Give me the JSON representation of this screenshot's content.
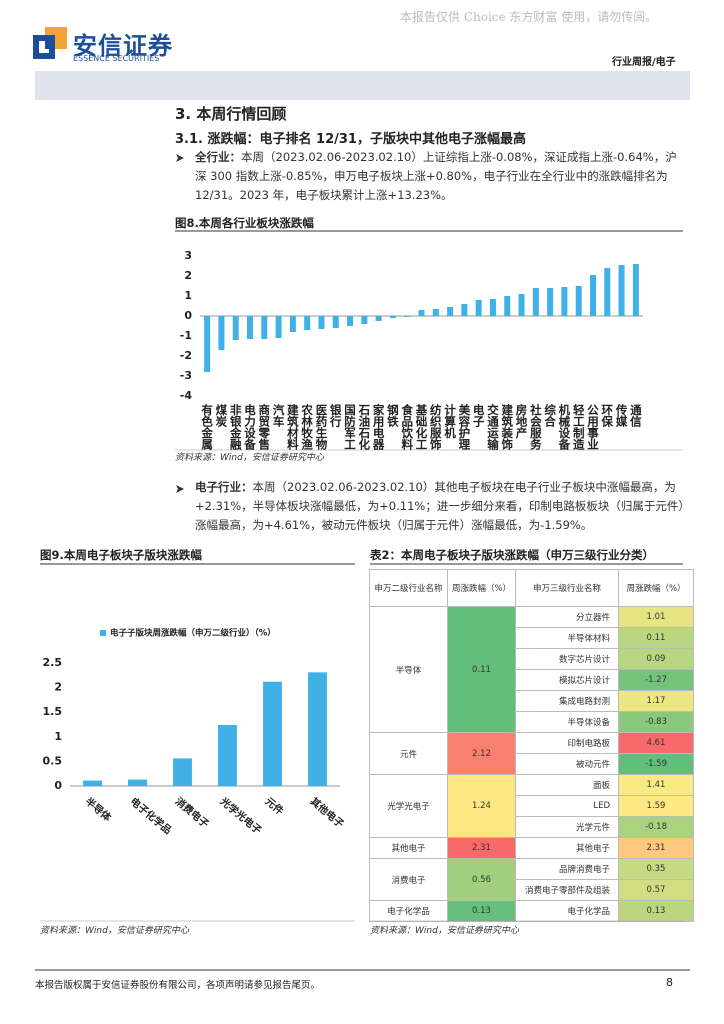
{
  "header": {
    "watermark": "本报告仅供 Choice 东方财富 使用，请勿传阅。",
    "logo_cn": "安信证券",
    "logo_en": "ESSENCE SECURITIES",
    "section": "行业周报/电子"
  },
  "heading": "3. 本周行情回顾",
  "subheading": "3.1. 涨跌幅：电子排名 12/31，子版块中其他电子涨幅最高",
  "bullets": [
    {
      "label": "全行业：",
      "text": "本周（2023.02.06-2023.02.10）上证综指上涨-0.08%，深证成指上涨-0.64%，沪深 300 指数上涨-0.85%，申万电子板块上涨+0.80%，电子行业在全行业中的涨跌幅排名为 12/31。2023 年，电子板块累计上涨+13.23%。"
    },
    {
      "label": "电子行业：",
      "text": "本周（2023.02.06-2023.02.10）其他电子板块在电子行业子板块中涨幅最高，为+2.31%，半导体板块涨幅最低，为+0.11%；进一步细分来看，印制电路板板块（归属于元件）涨幅最高，为+4.61%，被动元件板块（归属于元件）涨幅最低，为-1.59%。"
    }
  ],
  "chart_data": [
    {
      "type": "bar",
      "title": "图8.本周各行业板块涨跌幅",
      "source": "资料来源：Wind，安信证券研究中心",
      "color": "#3fb1e6",
      "categories": [
        "有色金属",
        "煤炭",
        "非银金融",
        "电力设备",
        "商贸零售",
        "汽车",
        "建筑材料",
        "农林牧渔",
        "医药生物",
        "银行",
        "国防军工",
        "石油石化",
        "家用电器",
        "钢铁",
        "食品饮料",
        "基础化工",
        "纺织服饰",
        "计算机",
        "美容护理",
        "电子",
        "交通运输",
        "建筑装饰",
        "房地产",
        "社会服务",
        "综合",
        "机械设备",
        "轻工制造",
        "公用事业",
        "环保",
        "传媒",
        "通信"
      ],
      "values": [
        -2.8,
        -1.7,
        -1.2,
        -1.15,
        -1.15,
        -1.1,
        -0.8,
        -0.7,
        -0.65,
        -0.6,
        -0.5,
        -0.4,
        -0.25,
        -0.1,
        -0.05,
        0.3,
        0.35,
        0.45,
        0.6,
        0.8,
        0.85,
        1.0,
        1.1,
        1.4,
        1.4,
        1.45,
        1.5,
        2.05,
        2.4,
        2.55,
        2.6
      ],
      "ylim": [
        -4,
        3
      ],
      "yticks": [
        -4,
        -3,
        -2,
        -1,
        0,
        1,
        2,
        3
      ]
    },
    {
      "type": "bar",
      "title": "图9.本周电子板块子版块涨跌幅",
      "source": "资料来源：Wind，安信证券研究中心",
      "color": "#3fb1e6",
      "series": [
        {
          "name": "电子子版块周涨跌幅（申万二级行业）（%）",
          "color": "#3fb1e6",
          "values": [
            0.11,
            0.13,
            0.56,
            1.24,
            2.12,
            2.31
          ]
        }
      ],
      "categories": [
        "半导体",
        "电子化学品",
        "消费电子",
        "光学光电子",
        "元件",
        "其他电子"
      ],
      "ylim": [
        0,
        2.5
      ],
      "yticks": [
        0,
        0.5,
        1,
        1.5,
        2,
        2.5
      ]
    }
  ],
  "table": {
    "title": "表2：本周电子板块子版块涨跌幅（申万三级行业分类）",
    "source": "资料来源：Wind，安信证券研究中心",
    "headers": [
      "申万二级行业名称",
      "周涨跌幅（%）",
      "申万三级行业名称",
      "周涨跌幅（%）"
    ],
    "groups": [
      {
        "name": "半导体",
        "value": 0.11,
        "subs": [
          {
            "name": "分立器件",
            "value": 1.01
          },
          {
            "name": "半导体材料",
            "value": 0.11
          },
          {
            "name": "数字芯片设计",
            "value": 0.09
          },
          {
            "name": "模拟芯片设计",
            "value": -1.27
          },
          {
            "name": "集成电路封测",
            "value": 1.17
          },
          {
            "name": "半导体设备",
            "value": -0.83
          }
        ]
      },
      {
        "name": "元件",
        "value": 2.12,
        "subs": [
          {
            "name": "印制电路板",
            "value": 4.61
          },
          {
            "name": "被动元件",
            "value": -1.59
          }
        ]
      },
      {
        "name": "光学光电子",
        "value": 1.24,
        "subs": [
          {
            "name": "面板",
            "value": 1.41
          },
          {
            "name": "LED",
            "value": 1.59
          },
          {
            "name": "光学元件",
            "value": -0.18
          }
        ]
      },
      {
        "name": "其他电子",
        "value": 2.31,
        "subs": [
          {
            "name": "其他电子",
            "value": 2.31
          }
        ]
      },
      {
        "name": "消费电子",
        "value": 0.56,
        "subs": [
          {
            "name": "品牌消费电子",
            "value": 0.35
          },
          {
            "name": "消费电子零部件及组装",
            "value": 0.57
          }
        ]
      },
      {
        "name": "电子化学品",
        "value": 0.13,
        "subs": [
          {
            "name": "电子化学品",
            "value": 0.13
          }
        ]
      }
    ]
  },
  "footer": {
    "note": "本报告版权属于安信证券股份有限公司，各项声明请参见报告尾页。",
    "page": "8"
  }
}
